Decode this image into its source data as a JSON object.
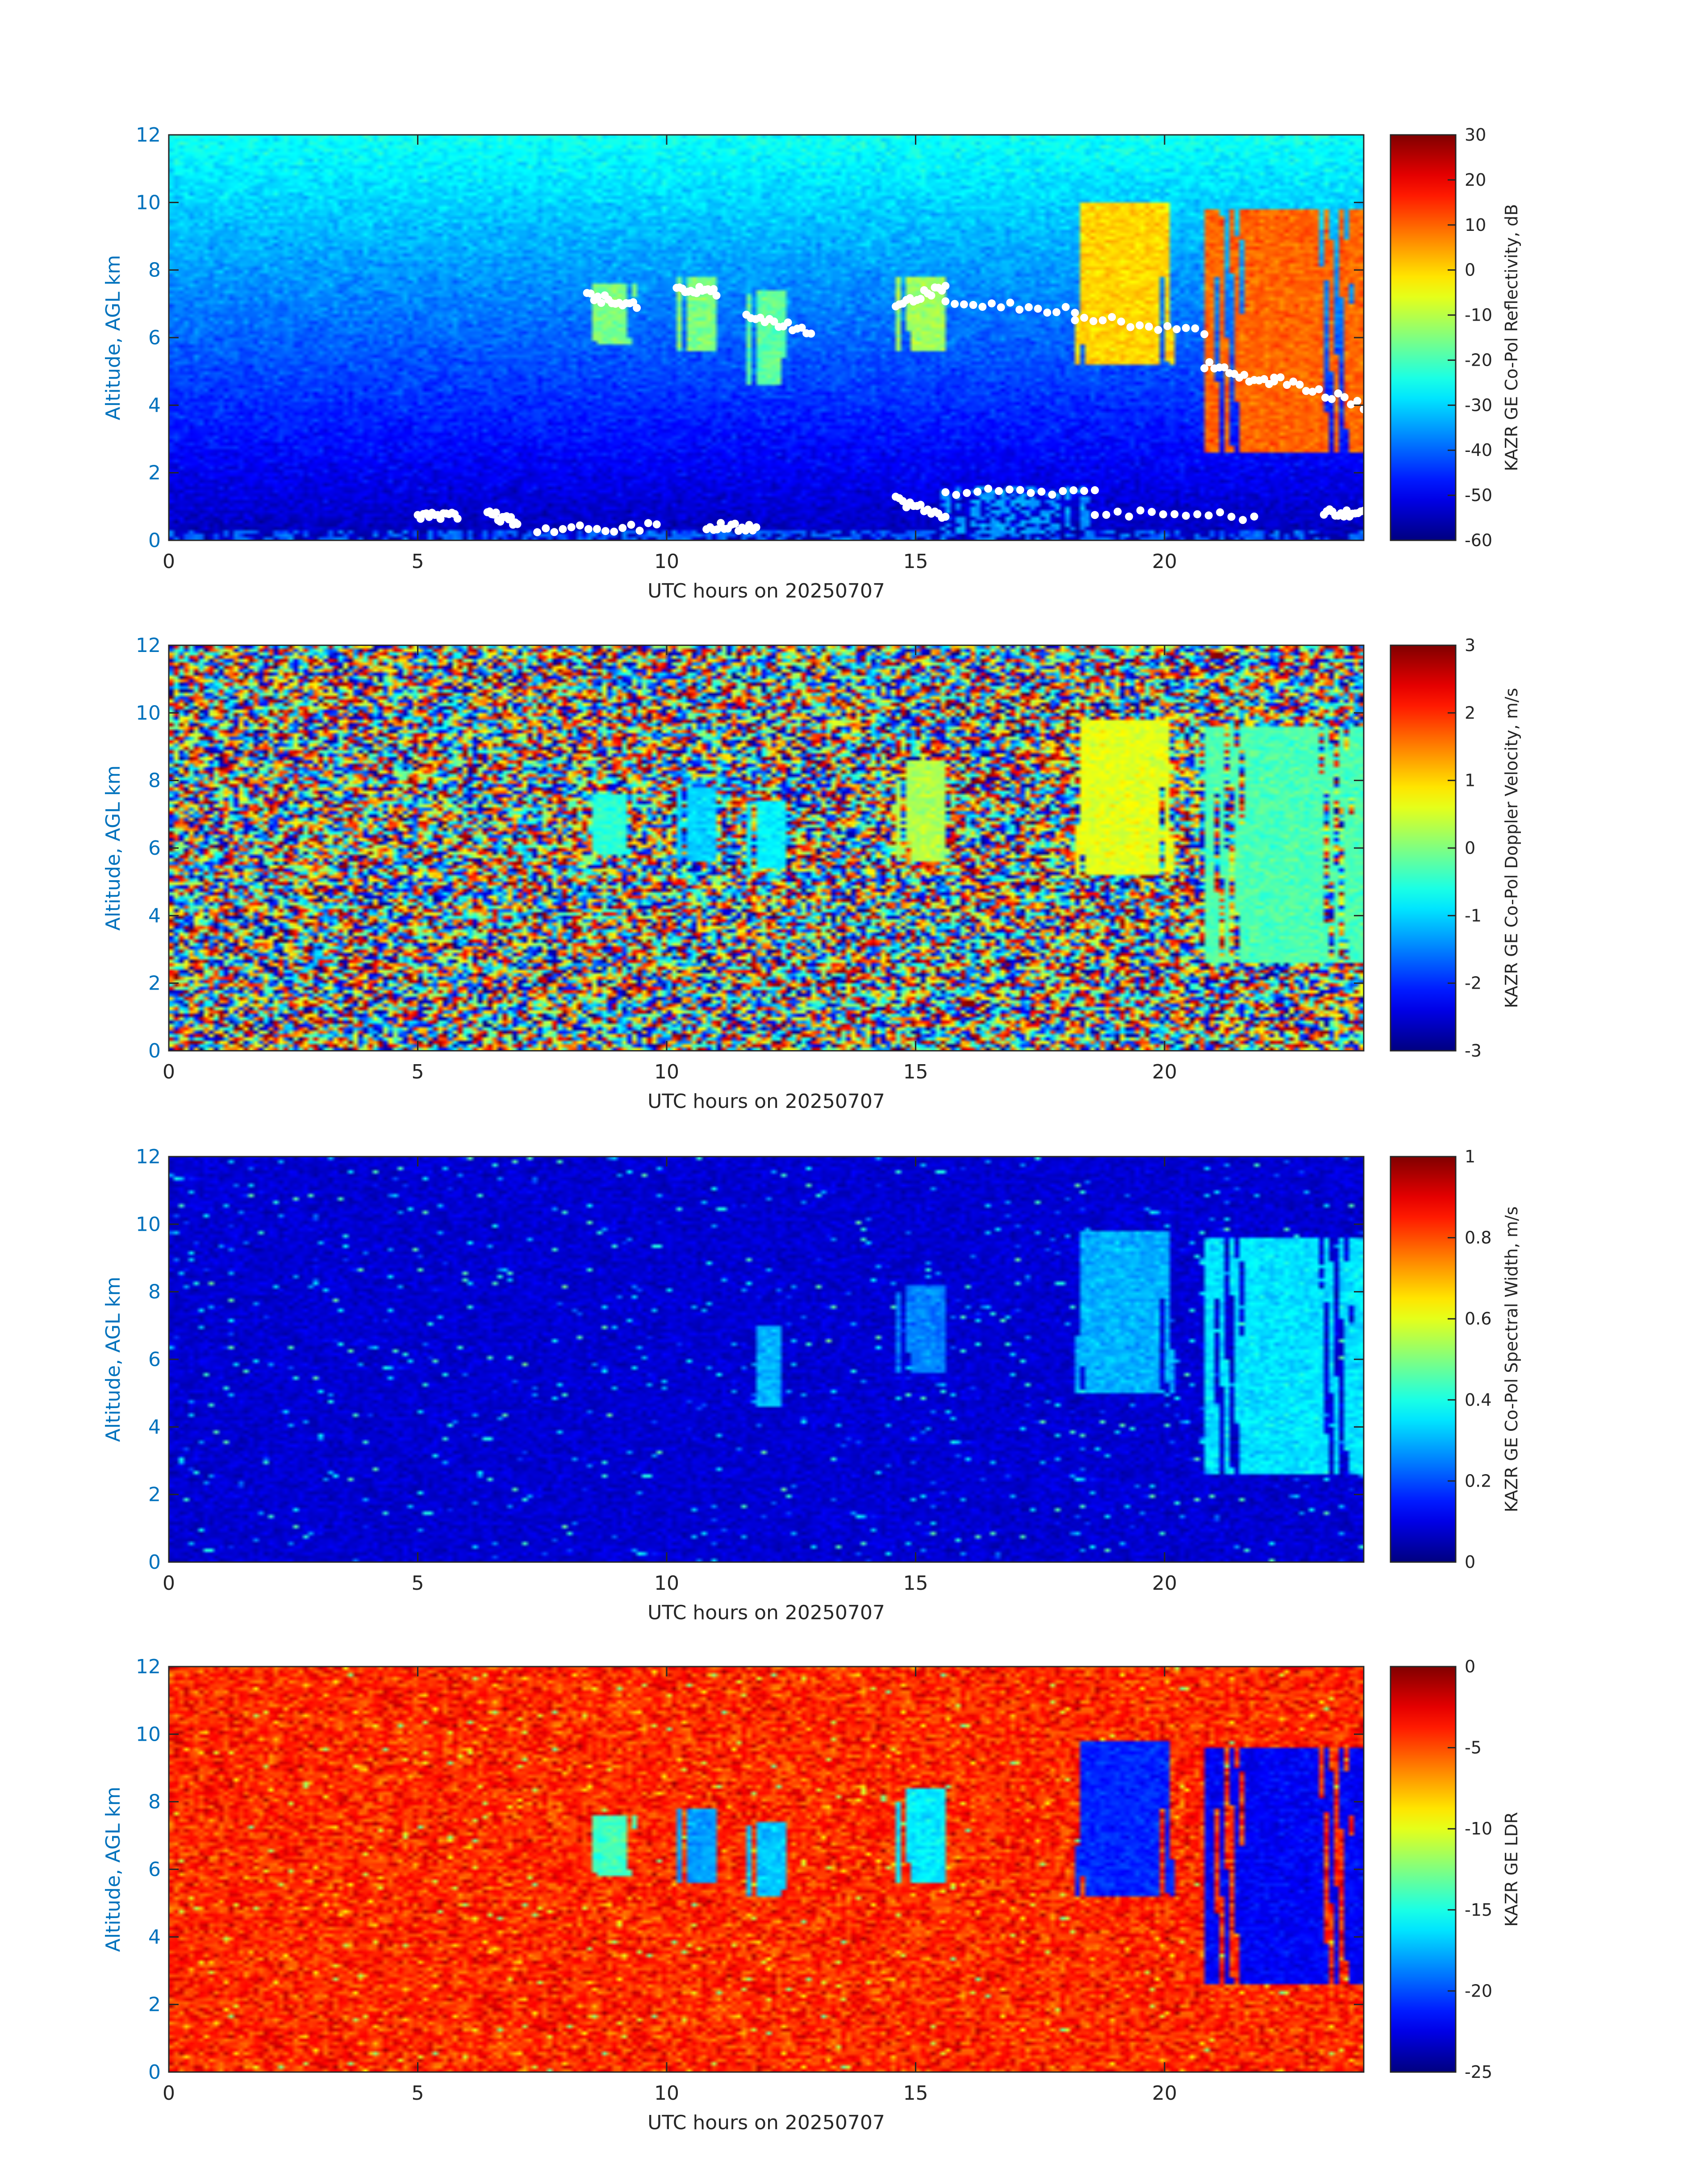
{
  "chart_data": [
    {
      "type": "heatmap",
      "variable": "reflectivity",
      "xlabel": "UTC hours on 20250707",
      "ylabel": "Altitude, AGL km",
      "x_ticks": [
        0,
        5,
        10,
        15,
        20
      ],
      "y_ticks": [
        0,
        2,
        4,
        6,
        8,
        10,
        12
      ],
      "xlim": [
        0,
        24
      ],
      "ylim": [
        0,
        12
      ],
      "colorbar": {
        "label": "KAZR GE Co-Pol Reflectivity, dB",
        "min": -60,
        "max": 30,
        "ticks": [
          -60,
          -50,
          -40,
          -30,
          -20,
          -10,
          0,
          10,
          20,
          30
        ],
        "colormap": "jet"
      },
      "background": "noise increasing with altitude, about -55 dB near 0 km to about -25 dB at 12 km",
      "cloud_regions": [
        {
          "x": [
            8.4,
            9.4
          ],
          "y": [
            5.8,
            7.6
          ],
          "value": -15
        },
        {
          "x": [
            10.2,
            11.0
          ],
          "y": [
            5.6,
            7.8
          ],
          "value": -15
        },
        {
          "x": [
            11.6,
            12.4
          ],
          "y": [
            4.6,
            7.4
          ],
          "value": -18
        },
        {
          "x": [
            14.6,
            15.6
          ],
          "y": [
            5.6,
            7.8
          ],
          "value": -12
        },
        {
          "x": [
            18.2,
            20.2
          ],
          "y": [
            5.2,
            10.0
          ],
          "value": 0
        },
        {
          "x": [
            20.8,
            24.0
          ],
          "y": [
            2.6,
            9.8
          ],
          "value": 10
        },
        {
          "x": [
            15.5,
            18.5
          ],
          "y": [
            0.2,
            1.6
          ],
          "value": -35
        },
        {
          "x": [
            0.0,
            24.0
          ],
          "y": [
            0.0,
            0.25
          ],
          "value": -40
        }
      ],
      "white_markers": true
    },
    {
      "type": "heatmap",
      "variable": "doppler_velocity",
      "xlabel": "UTC hours on 20250707",
      "ylabel": "Altitude, AGL km",
      "x_ticks": [
        0,
        5,
        10,
        15,
        20
      ],
      "y_ticks": [
        0,
        2,
        4,
        6,
        8,
        10,
        12
      ],
      "xlim": [
        0,
        24
      ],
      "ylim": [
        0,
        12
      ],
      "colorbar": {
        "label": "KAZR GE Co-Pol Doppler Velocity, m/s",
        "min": -3,
        "max": 3,
        "ticks": [
          -3,
          -2,
          -1,
          0,
          1,
          2,
          3
        ],
        "colormap": "jet"
      },
      "background": "random noise spanning full range",
      "cloud_regions": [
        {
          "x": [
            8.4,
            9.4
          ],
          "y": [
            5.8,
            7.6
          ],
          "value": -0.5
        },
        {
          "x": [
            10.2,
            11.0
          ],
          "y": [
            5.6,
            7.8
          ],
          "value": -1.0
        },
        {
          "x": [
            11.6,
            12.4
          ],
          "y": [
            5.4,
            7.4
          ],
          "value": -0.8
        },
        {
          "x": [
            14.6,
            15.6
          ],
          "y": [
            5.6,
            8.6
          ],
          "value": 0.3
        },
        {
          "x": [
            18.2,
            20.2
          ],
          "y": [
            5.2,
            9.8
          ],
          "value": 0.6
        },
        {
          "x": [
            20.8,
            24.0
          ],
          "y": [
            2.6,
            9.6
          ],
          "value": -0.3
        }
      ]
    },
    {
      "type": "heatmap",
      "variable": "spectral_width",
      "xlabel": "UTC hours on 20250707",
      "ylabel": "Altitude, AGL km",
      "x_ticks": [
        0,
        5,
        10,
        15,
        20
      ],
      "y_ticks": [
        0,
        2,
        4,
        6,
        8,
        10,
        12
      ],
      "xlim": [
        0,
        24
      ],
      "ylim": [
        0,
        12
      ],
      "colorbar": {
        "label": "KAZR GE Co-Pol Spectral Width, m/s",
        "min": 0,
        "max": 1,
        "ticks": [
          0,
          0.2,
          0.4,
          0.6,
          0.8,
          1
        ],
        "colormap": "jet"
      },
      "background": "low values about 0.08 with noise",
      "cloud_regions": [
        {
          "x": [
            11.8,
            12.3
          ],
          "y": [
            4.6,
            7.0
          ],
          "value": 0.3
        },
        {
          "x": [
            14.6,
            15.6
          ],
          "y": [
            5.6,
            8.2
          ],
          "value": 0.25
        },
        {
          "x": [
            18.2,
            20.2
          ],
          "y": [
            5.0,
            9.8
          ],
          "value": 0.3
        },
        {
          "x": [
            20.8,
            24.0
          ],
          "y": [
            2.6,
            9.6
          ],
          "value": 0.35
        }
      ]
    },
    {
      "type": "heatmap",
      "variable": "ldr",
      "xlabel": "UTC hours on 20250707",
      "ylabel": "Altitude, AGL km",
      "x_ticks": [
        0,
        5,
        10,
        15,
        20
      ],
      "y_ticks": [
        0,
        2,
        4,
        6,
        8,
        10,
        12
      ],
      "xlim": [
        0,
        24
      ],
      "ylim": [
        0,
        12
      ],
      "colorbar": {
        "label": "KAZR GE LDR",
        "min": -25,
        "max": 0,
        "ticks": [
          -25,
          -20,
          -15,
          -10,
          -5,
          0
        ],
        "colormap": "jet"
      },
      "background": "noise about -4 dB",
      "cloud_regions": [
        {
          "x": [
            8.4,
            9.4
          ],
          "y": [
            5.8,
            7.6
          ],
          "value": -14
        },
        {
          "x": [
            10.2,
            11.0
          ],
          "y": [
            5.6,
            7.8
          ],
          "value": -18
        },
        {
          "x": [
            11.6,
            12.4
          ],
          "y": [
            5.2,
            7.4
          ],
          "value": -17
        },
        {
          "x": [
            14.6,
            15.6
          ],
          "y": [
            5.6,
            8.4
          ],
          "value": -16
        },
        {
          "x": [
            18.2,
            20.2
          ],
          "y": [
            5.2,
            9.8
          ],
          "value": -21
        },
        {
          "x": [
            20.8,
            24.0
          ],
          "y": [
            2.6,
            9.6
          ],
          "value": -22
        }
      ]
    }
  ]
}
